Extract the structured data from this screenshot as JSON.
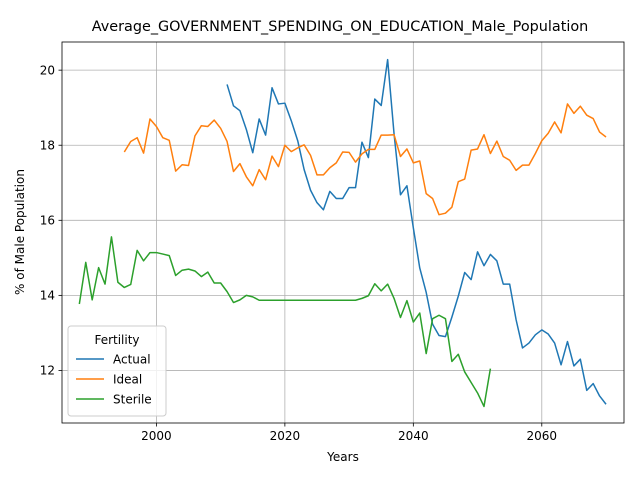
{
  "chart_data": {
    "type": "line",
    "title": "Average_GOVERNMENT_SPENDING_ON_EDUCATION_Male_Population",
    "xlabel": "Years",
    "ylabel": "% of Male Population",
    "xlim": [
      1985.3,
      2072.8
    ],
    "ylim": [
      10.6,
      20.75
    ],
    "xticks": [
      2000,
      2020,
      2040,
      2060
    ],
    "yticks": [
      12,
      14,
      16,
      18,
      20
    ],
    "grid": true,
    "legend": {
      "title": "Fertility",
      "placement": "lower-left"
    },
    "series": [
      {
        "name": "Actual",
        "color": "#1f77b4",
        "x": [
          2011,
          2012,
          2013,
          2014,
          2015,
          2016,
          2017,
          2018,
          2019,
          2020,
          2021,
          2022,
          2023,
          2024,
          2025,
          2026,
          2027,
          2028,
          2029,
          2030,
          2031,
          2032,
          2033,
          2034,
          2035,
          2036,
          2037,
          2038,
          2039,
          2040,
          2041,
          2042,
          2043,
          2044,
          2045,
          2046,
          2047,
          2048,
          2049,
          2050,
          2051,
          2052,
          2053,
          2054,
          2055,
          2056,
          2057,
          2058,
          2059,
          2060,
          2061,
          2062,
          2063,
          2064,
          2065,
          2066,
          2067,
          2068,
          2069,
          2070
        ],
        "y": [
          19.62,
          19.05,
          18.92,
          18.42,
          17.8,
          18.7,
          18.27,
          19.53,
          19.1,
          19.12,
          18.65,
          18.12,
          17.35,
          16.8,
          16.47,
          16.28,
          16.77,
          16.58,
          16.58,
          16.87,
          16.87,
          18.08,
          17.67,
          19.23,
          19.06,
          20.28,
          18.3,
          16.68,
          16.92,
          15.8,
          14.73,
          14.08,
          13.23,
          12.93,
          12.9,
          13.42,
          13.98,
          14.61,
          14.42,
          15.16,
          14.79,
          15.09,
          14.92,
          14.3,
          14.3,
          13.35,
          12.6,
          12.73,
          12.95,
          13.08,
          12.97,
          12.73,
          12.15,
          12.77,
          12.12,
          12.3,
          11.47,
          11.65,
          11.32,
          11.1
        ]
      },
      {
        "name": "Ideal",
        "color": "#ff7f0e",
        "x": [
          1995,
          1996,
          1997,
          1998,
          1999,
          2000,
          2001,
          2002,
          2003,
          2004,
          2005,
          2006,
          2007,
          2008,
          2009,
          2010,
          2011,
          2012,
          2013,
          2014,
          2015,
          2016,
          2017,
          2018,
          2019,
          2020,
          2021,
          2022,
          2023,
          2024,
          2025,
          2026,
          2027,
          2028,
          2029,
          2030,
          2031,
          2032,
          2033,
          2034,
          2035,
          2036,
          2037,
          2038,
          2039,
          2040,
          2041,
          2042,
          2043,
          2044,
          2045,
          2046,
          2047,
          2048,
          2049,
          2050,
          2051,
          2052,
          2053,
          2054,
          2055,
          2056,
          2057,
          2058,
          2059,
          2060,
          2061,
          2062,
          2063,
          2064,
          2065,
          2066,
          2067,
          2068,
          2069,
          2070
        ],
        "y": [
          17.82,
          18.1,
          18.2,
          17.79,
          18.7,
          18.5,
          18.2,
          18.13,
          17.31,
          17.48,
          17.46,
          18.25,
          18.52,
          18.5,
          18.67,
          18.45,
          18.1,
          17.3,
          17.51,
          17.16,
          16.92,
          17.35,
          17.08,
          17.71,
          17.43,
          18.0,
          17.83,
          17.93,
          18.01,
          17.73,
          17.21,
          17.21,
          17.4,
          17.53,
          17.82,
          17.81,
          17.55,
          17.77,
          17.89,
          17.89,
          18.27,
          18.27,
          18.28,
          17.7,
          17.9,
          17.53,
          17.58,
          16.71,
          16.58,
          16.15,
          16.19,
          16.35,
          17.03,
          17.1,
          17.87,
          17.9,
          18.28,
          17.78,
          18.11,
          17.7,
          17.6,
          17.33,
          17.47,
          17.47,
          17.78,
          18.12,
          18.32,
          18.62,
          18.33,
          19.1,
          18.85,
          19.04,
          18.8,
          18.71,
          18.35,
          18.22
        ]
      },
      {
        "name": "Sterile",
        "color": "#2ca02c",
        "x": [
          1988,
          1989,
          1990,
          1991,
          1992,
          1993,
          1994,
          1995,
          1996,
          1997,
          1998,
          1999,
          2000,
          2001,
          2002,
          2003,
          2004,
          2005,
          2006,
          2007,
          2008,
          2009,
          2010,
          2011,
          2012,
          2013,
          2014,
          2015,
          2016,
          2017,
          2018,
          2019,
          2020,
          2021,
          2022,
          2023,
          2024,
          2025,
          2026,
          2027,
          2028,
          2029,
          2030,
          2031,
          2032,
          2033,
          2034,
          2035,
          2036,
          2037,
          2038,
          2039,
          2040,
          2041,
          2042,
          2043,
          2044,
          2045,
          2046,
          2047,
          2048,
          2049,
          2050,
          2051,
          2052
        ],
        "y": [
          13.77,
          14.88,
          13.88,
          14.74,
          14.3,
          15.56,
          14.35,
          14.21,
          14.29,
          15.2,
          14.92,
          15.14,
          15.14,
          15.1,
          15.06,
          14.53,
          14.67,
          14.7,
          14.65,
          14.5,
          14.62,
          14.33,
          14.33,
          14.1,
          13.81,
          13.88,
          14.0,
          13.96,
          13.87,
          13.87,
          13.87,
          13.87,
          13.87,
          13.87,
          13.87,
          13.87,
          13.87,
          13.87,
          13.87,
          13.87,
          13.87,
          13.87,
          13.87,
          13.87,
          13.92,
          13.99,
          14.31,
          14.12,
          14.3,
          13.92,
          13.41,
          13.86,
          13.29,
          13.53,
          12.45,
          13.38,
          13.47,
          13.38,
          12.24,
          12.43,
          11.96,
          11.68,
          11.4,
          11.04,
          12.05
        ]
      }
    ]
  }
}
